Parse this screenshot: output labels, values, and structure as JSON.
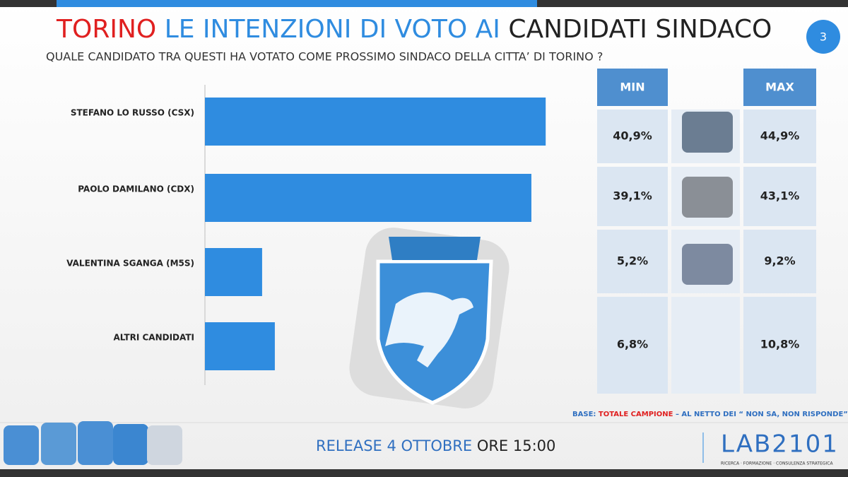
{
  "header": {
    "title_parts": [
      "TORINO",
      "LE INTENZIONI DI VOTO AI",
      "CANDIDATI SINDACO"
    ],
    "subtitle": "QUALE CANDIDATO TRA QUESTI HA VOTATO COME PROSSIMO SINDACO DELLA CITTA’ DI TORINO ?",
    "page_number": "3"
  },
  "chart_data": {
    "type": "bar",
    "orientation": "horizontal",
    "categories": [
      "STEFANO LO RUSSO (CSX)",
      "PAOLO DAMILANO (CDX)",
      "VALENTINA SGANGA (M5S)",
      "ALTRI CANDIDATI"
    ],
    "values": [
      42.9,
      41.1,
      7.2,
      8.8
    ],
    "color": "#2f8ce0"
  },
  "table": {
    "headers": [
      "MIN",
      "MAX"
    ],
    "rows": [
      [
        "40,9%",
        "44,9%"
      ],
      [
        "39,1%",
        "43,1%"
      ],
      [
        "5,2%",
        "9,2%"
      ],
      [
        "6,8%",
        "10,8%"
      ]
    ]
  },
  "footer": {
    "base_parts": [
      "BASE:",
      "TOTALE CAMPIONE",
      "– AL NETTO DEI “ NON SA, NON RISPONDE”"
    ],
    "release_parts": [
      "RELEASE 4 OTTOBRE",
      "ORE 15:00"
    ],
    "logo": "LAB2101",
    "logo_tagline": "RICERCA · FORMAZIONE · CONSULENZA STRATEGICA"
  }
}
